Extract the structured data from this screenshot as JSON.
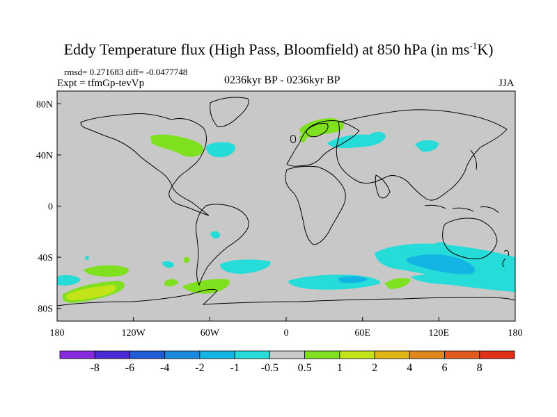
{
  "title": "Eddy Temperature flux (High Pass, Bloomfield) at 850 hPa (in ms",
  "title_sup": "-1",
  "title_end": "K)",
  "stats": "rmsd= 0.271683 diff= -0.0477748",
  "expt": "Expt = tfmGp-tevVp",
  "period": "0236kyr BP - 0236kyr BP",
  "season": "JJA",
  "y_ticks": [
    "80N",
    "40N",
    "0",
    "40S",
    "80S"
  ],
  "x_ticks": [
    "180",
    "120W",
    "60W",
    "0",
    "60E",
    "120E",
    "180"
  ],
  "colorbar": {
    "labels": [
      "-8",
      "-6",
      "-4",
      "-2",
      "-1",
      "-0.5",
      "0.5",
      "1",
      "2",
      "4",
      "6",
      "8"
    ],
    "colors": [
      "#8a2be2",
      "#4a2ad2",
      "#1e5cd8",
      "#1a8ae0",
      "#14b4e4",
      "#26dcd8",
      "#c8c8c8",
      "#7ee01e",
      "#c4e41a",
      "#e0b414",
      "#e0861a",
      "#e05a1a",
      "#e0321a"
    ]
  },
  "map": {
    "background": "#c8c8c8",
    "land_outline": "#000000",
    "level_colors": {
      "-1": "#14b4e4",
      "-0.5": "#26dcd8",
      "0.5": "#7ee01e",
      "1": "#c4e41a"
    }
  }
}
